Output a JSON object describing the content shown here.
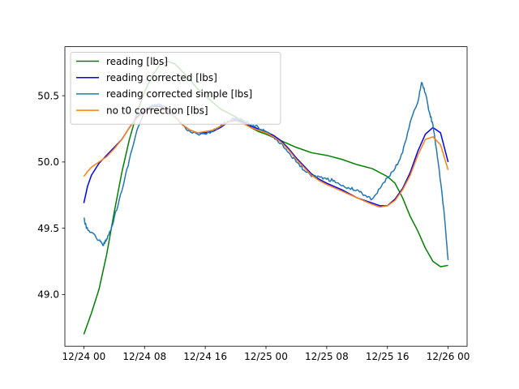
{
  "chart_data": {
    "type": "line",
    "title": "",
    "xlabel": "",
    "ylabel": "",
    "x_range": [
      "2021-12-23T21:30",
      "2021-12-26T02:30"
    ],
    "ylim": [
      48.61,
      50.87
    ],
    "grid": false,
    "legend_placement": "top-left",
    "x_ticks": [
      {
        "t": "2021-12-24T00:00",
        "label": "12/24 00"
      },
      {
        "t": "2021-12-24T08:00",
        "label": "12/24 08"
      },
      {
        "t": "2021-12-24T16:00",
        "label": "12/24 16"
      },
      {
        "t": "2021-12-25T00:00",
        "label": "12/25 00"
      },
      {
        "t": "2021-12-25T08:00",
        "label": "12/25 08"
      },
      {
        "t": "2021-12-25T16:00",
        "label": "12/25 16"
      },
      {
        "t": "2021-12-26T00:00",
        "label": "12/26 00"
      }
    ],
    "y_ticks": [
      {
        "v": 49.0,
        "label": "49.0"
      },
      {
        "v": 49.5,
        "label": "49.5"
      },
      {
        "v": 50.0,
        "label": "50.0"
      },
      {
        "v": 50.5,
        "label": "50.5"
      }
    ],
    "series": [
      {
        "name": "reading [lbs]",
        "color": "#008000",
        "noise": 0,
        "points": [
          [
            "2021-12-24T00:00",
            48.7
          ],
          [
            "2021-12-24T01:00",
            48.86
          ],
          [
            "2021-12-24T02:00",
            49.04
          ],
          [
            "2021-12-24T03:00",
            49.3
          ],
          [
            "2021-12-24T04:00",
            49.62
          ],
          [
            "2021-12-24T05:00",
            49.92
          ],
          [
            "2021-12-24T06:00",
            50.17
          ],
          [
            "2021-12-24T07:00",
            50.37
          ],
          [
            "2021-12-24T08:00",
            50.53
          ],
          [
            "2021-12-24T09:00",
            50.65
          ],
          [
            "2021-12-24T10:00",
            50.73
          ],
          [
            "2021-12-24T11:00",
            50.76
          ],
          [
            "2021-12-24T12:00",
            50.74
          ],
          [
            "2021-12-24T13:00",
            50.68
          ],
          [
            "2021-12-24T14:00",
            50.62
          ],
          [
            "2021-12-24T15:00",
            50.55
          ],
          [
            "2021-12-24T16:00",
            50.5
          ],
          [
            "2021-12-24T17:00",
            50.45
          ],
          [
            "2021-12-24T18:00",
            50.4
          ],
          [
            "2021-12-24T19:00",
            50.37
          ],
          [
            "2021-12-24T20:00",
            50.34
          ],
          [
            "2021-12-24T21:00",
            50.3
          ],
          [
            "2021-12-24T22:00",
            50.26
          ],
          [
            "2021-12-24T23:00",
            50.23
          ],
          [
            "2021-12-25T00:00",
            50.21
          ],
          [
            "2021-12-25T02:00",
            50.16
          ],
          [
            "2021-12-25T04:00",
            50.11
          ],
          [
            "2021-12-25T06:00",
            50.07
          ],
          [
            "2021-12-25T08:00",
            50.05
          ],
          [
            "2021-12-25T10:00",
            50.02
          ],
          [
            "2021-12-25T12:00",
            49.98
          ],
          [
            "2021-12-25T14:00",
            49.95
          ],
          [
            "2021-12-25T16:00",
            49.89
          ],
          [
            "2021-12-25T17:00",
            49.84
          ],
          [
            "2021-12-25T18:00",
            49.73
          ],
          [
            "2021-12-25T19:00",
            49.59
          ],
          [
            "2021-12-25T20:00",
            49.48
          ],
          [
            "2021-12-25T21:00",
            49.35
          ],
          [
            "2021-12-25T22:00",
            49.25
          ],
          [
            "2021-12-25T23:00",
            49.21
          ],
          [
            "2021-12-26T00:00",
            49.22
          ]
        ]
      },
      {
        "name": "reading corrected [lbs]",
        "color": "#0000ff",
        "noise": 0,
        "points": [
          [
            "2021-12-24T00:00",
            49.69
          ],
          [
            "2021-12-24T00:30",
            49.82
          ],
          [
            "2021-12-24T01:00",
            49.9
          ],
          [
            "2021-12-24T02:00",
            49.99
          ],
          [
            "2021-12-24T03:00",
            50.05
          ],
          [
            "2021-12-24T04:00",
            50.11
          ],
          [
            "2021-12-24T05:00",
            50.17
          ],
          [
            "2021-12-24T06:00",
            50.26
          ],
          [
            "2021-12-24T07:00",
            50.34
          ],
          [
            "2021-12-24T08:00",
            50.39
          ],
          [
            "2021-12-24T09:00",
            50.42
          ],
          [
            "2021-12-24T10:00",
            50.42
          ],
          [
            "2021-12-24T11:00",
            50.39
          ],
          [
            "2021-12-24T12:00",
            50.34
          ],
          [
            "2021-12-24T13:00",
            50.28
          ],
          [
            "2021-12-24T14:00",
            50.24
          ],
          [
            "2021-12-24T15:00",
            50.22
          ],
          [
            "2021-12-24T16:00",
            50.22
          ],
          [
            "2021-12-24T17:00",
            50.23
          ],
          [
            "2021-12-24T18:00",
            50.26
          ],
          [
            "2021-12-24T19:00",
            50.3
          ],
          [
            "2021-12-24T20:00",
            50.32
          ],
          [
            "2021-12-24T21:00",
            50.3
          ],
          [
            "2021-12-24T22:00",
            50.27
          ],
          [
            "2021-12-24T23:00",
            50.25
          ],
          [
            "2021-12-25T00:00",
            50.23
          ],
          [
            "2021-12-25T01:00",
            50.2
          ],
          [
            "2021-12-25T02:00",
            50.16
          ],
          [
            "2021-12-25T03:00",
            50.1
          ],
          [
            "2021-12-25T04:00",
            50.03
          ],
          [
            "2021-12-25T05:00",
            49.97
          ],
          [
            "2021-12-25T06:00",
            49.91
          ],
          [
            "2021-12-25T07:00",
            49.87
          ],
          [
            "2021-12-25T08:00",
            49.84
          ],
          [
            "2021-12-25T10:00",
            49.79
          ],
          [
            "2021-12-25T12:00",
            49.73
          ],
          [
            "2021-12-25T14:00",
            49.69
          ],
          [
            "2021-12-25T15:00",
            49.67
          ],
          [
            "2021-12-25T16:00",
            49.67
          ],
          [
            "2021-12-25T17:00",
            49.72
          ],
          [
            "2021-12-25T18:00",
            49.8
          ],
          [
            "2021-12-25T19:00",
            49.92
          ],
          [
            "2021-12-25T20:00",
            50.08
          ],
          [
            "2021-12-25T21:00",
            50.21
          ],
          [
            "2021-12-25T22:00",
            50.26
          ],
          [
            "2021-12-25T23:00",
            50.22
          ],
          [
            "2021-12-26T00:00",
            50.0
          ]
        ]
      },
      {
        "name": "reading corrected simple [lbs]",
        "color": "#1f77b4",
        "noise": 0.012,
        "points": [
          [
            "2021-12-24T00:00",
            49.58
          ],
          [
            "2021-12-24T00:20",
            49.5
          ],
          [
            "2021-12-24T01:00",
            49.47
          ],
          [
            "2021-12-24T02:00",
            49.41
          ],
          [
            "2021-12-24T02:30",
            49.37
          ],
          [
            "2021-12-24T03:00",
            49.42
          ],
          [
            "2021-12-24T03:30",
            49.48
          ],
          [
            "2021-12-24T04:00",
            49.58
          ],
          [
            "2021-12-24T05:00",
            49.78
          ],
          [
            "2021-12-24T06:00",
            50.02
          ],
          [
            "2021-12-24T07:00",
            50.24
          ],
          [
            "2021-12-24T08:00",
            50.38
          ],
          [
            "2021-12-24T09:00",
            50.43
          ],
          [
            "2021-12-24T10:00",
            50.43
          ],
          [
            "2021-12-24T11:00",
            50.4
          ],
          [
            "2021-12-24T12:00",
            50.34
          ],
          [
            "2021-12-24T13:00",
            50.28
          ],
          [
            "2021-12-24T14:00",
            50.23
          ],
          [
            "2021-12-24T15:00",
            50.21
          ],
          [
            "2021-12-24T16:00",
            50.21
          ],
          [
            "2021-12-24T17:00",
            50.23
          ],
          [
            "2021-12-24T18:00",
            50.27
          ],
          [
            "2021-12-24T19:00",
            50.31
          ],
          [
            "2021-12-24T20:00",
            50.33
          ],
          [
            "2021-12-24T21:00",
            50.31
          ],
          [
            "2021-12-24T22:00",
            50.28
          ],
          [
            "2021-12-24T23:00",
            50.26
          ],
          [
            "2021-12-25T00:00",
            50.23
          ],
          [
            "2021-12-25T01:00",
            50.19
          ],
          [
            "2021-12-25T02:00",
            50.14
          ],
          [
            "2021-12-25T03:00",
            50.07
          ],
          [
            "2021-12-25T04:00",
            50.0
          ],
          [
            "2021-12-25T05:00",
            49.94
          ],
          [
            "2021-12-25T06:00",
            49.89
          ],
          [
            "2021-12-25T07:00",
            49.89
          ],
          [
            "2021-12-25T08:00",
            49.87
          ],
          [
            "2021-12-25T09:00",
            49.86
          ],
          [
            "2021-12-25T10:00",
            49.82
          ],
          [
            "2021-12-25T11:00",
            49.8
          ],
          [
            "2021-12-25T12:00",
            49.79
          ],
          [
            "2021-12-25T13:00",
            49.75
          ],
          [
            "2021-12-25T14:00",
            49.72
          ],
          [
            "2021-12-25T15:00",
            49.8
          ],
          [
            "2021-12-25T16:00",
            49.88
          ],
          [
            "2021-12-25T17:00",
            49.95
          ],
          [
            "2021-12-25T18:00",
            50.07
          ],
          [
            "2021-12-25T19:00",
            50.3
          ],
          [
            "2021-12-25T20:00",
            50.45
          ],
          [
            "2021-12-25T20:30",
            50.6
          ],
          [
            "2021-12-25T21:00",
            50.52
          ],
          [
            "2021-12-25T21:30",
            50.38
          ],
          [
            "2021-12-25T22:00",
            50.28
          ],
          [
            "2021-12-25T22:30",
            50.08
          ],
          [
            "2021-12-25T23:00",
            49.85
          ],
          [
            "2021-12-25T23:30",
            49.6
          ],
          [
            "2021-12-26T00:00",
            49.26
          ]
        ]
      },
      {
        "name": "no t0 correction [lbs]",
        "color": "#ff7f0e",
        "noise": 0,
        "points": [
          [
            "2021-12-24T00:00",
            49.89
          ],
          [
            "2021-12-24T00:30",
            49.93
          ],
          [
            "2021-12-24T01:00",
            49.96
          ],
          [
            "2021-12-24T02:00",
            50.0
          ],
          [
            "2021-12-24T03:00",
            50.04
          ],
          [
            "2021-12-24T04:00",
            50.1
          ],
          [
            "2021-12-24T05:00",
            50.17
          ],
          [
            "2021-12-24T06:00",
            50.26
          ],
          [
            "2021-12-24T07:00",
            50.33
          ],
          [
            "2021-12-24T08:00",
            50.38
          ],
          [
            "2021-12-24T09:00",
            50.4
          ],
          [
            "2021-12-24T10:00",
            50.4
          ],
          [
            "2021-12-24T11:00",
            50.38
          ],
          [
            "2021-12-24T12:00",
            50.34
          ],
          [
            "2021-12-24T13:00",
            50.28
          ],
          [
            "2021-12-24T14:00",
            50.24
          ],
          [
            "2021-12-24T15:00",
            50.22
          ],
          [
            "2021-12-24T16:00",
            50.23
          ],
          [
            "2021-12-24T17:00",
            50.24
          ],
          [
            "2021-12-24T18:00",
            50.27
          ],
          [
            "2021-12-24T19:00",
            50.3
          ],
          [
            "2021-12-24T20:00",
            50.31
          ],
          [
            "2021-12-24T21:00",
            50.29
          ],
          [
            "2021-12-24T22:00",
            50.26
          ],
          [
            "2021-12-24T23:00",
            50.24
          ],
          [
            "2021-12-25T00:00",
            50.22
          ],
          [
            "2021-12-25T01:00",
            50.19
          ],
          [
            "2021-12-25T02:00",
            50.15
          ],
          [
            "2021-12-25T03:00",
            50.09
          ],
          [
            "2021-12-25T04:00",
            50.02
          ],
          [
            "2021-12-25T05:00",
            49.96
          ],
          [
            "2021-12-25T06:00",
            49.9
          ],
          [
            "2021-12-25T07:00",
            49.86
          ],
          [
            "2021-12-25T08:00",
            49.83
          ],
          [
            "2021-12-25T10:00",
            49.78
          ],
          [
            "2021-12-25T12:00",
            49.73
          ],
          [
            "2021-12-25T14:00",
            49.68
          ],
          [
            "2021-12-25T15:00",
            49.66
          ],
          [
            "2021-12-25T16:00",
            49.67
          ],
          [
            "2021-12-25T17:00",
            49.71
          ],
          [
            "2021-12-25T18:00",
            49.79
          ],
          [
            "2021-12-25T19:00",
            49.9
          ],
          [
            "2021-12-25T20:00",
            50.05
          ],
          [
            "2021-12-25T21:00",
            50.17
          ],
          [
            "2021-12-25T22:00",
            50.19
          ],
          [
            "2021-12-25T23:00",
            50.13
          ],
          [
            "2021-12-26T00:00",
            49.94
          ]
        ]
      }
    ]
  }
}
